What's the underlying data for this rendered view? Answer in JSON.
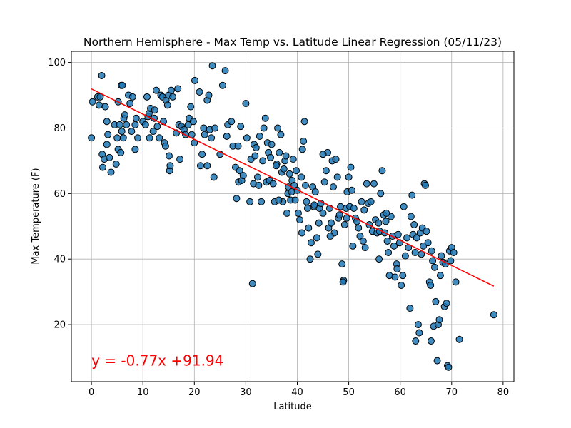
{
  "chart_data": {
    "type": "scatter",
    "title": "Northern Hemisphere - Max Temp vs. Latitude Linear Regression (05/11/23)",
    "xlabel": "Latitude",
    "ylabel": "Max Temperature (F)",
    "xlim": [
      -3.9,
      82.1
    ],
    "ylim": [
      2.6,
      103.4
    ],
    "xticks": [
      0,
      10,
      20,
      30,
      40,
      50,
      60,
      70,
      80
    ],
    "yticks": [
      20,
      40,
      60,
      80,
      100
    ],
    "grid": true,
    "marker_color": "#1f77b4",
    "line_color": "#ff0000",
    "regression": {
      "slope": -0.77,
      "intercept": 91.94,
      "x_start": 0,
      "x_end": 78.2
    },
    "annotation": {
      "text": "y = -0.77x +91.94",
      "x": 0,
      "y": 7.5,
      "color": "#ff0000"
    },
    "points": [
      [
        0.0,
        77.0
      ],
      [
        0.2,
        88.0
      ],
      [
        1.2,
        89.5
      ],
      [
        1.5,
        87.0
      ],
      [
        1.7,
        89.5
      ],
      [
        2.0,
        96.0
      ],
      [
        2.1,
        72.0
      ],
      [
        2.2,
        68.0
      ],
      [
        2.5,
        70.5
      ],
      [
        2.7,
        86.5
      ],
      [
        3.0,
        82.0
      ],
      [
        3.0,
        75.0
      ],
      [
        3.2,
        78.0
      ],
      [
        3.5,
        71.0
      ],
      [
        3.8,
        66.5
      ],
      [
        4.5,
        81.0
      ],
      [
        4.8,
        69.0
      ],
      [
        5.0,
        77.0
      ],
      [
        5.2,
        73.5
      ],
      [
        5.2,
        88.0
      ],
      [
        5.5,
        81.0
      ],
      [
        5.7,
        72.5
      ],
      [
        5.8,
        93.0
      ],
      [
        5.9,
        79.0
      ],
      [
        6.0,
        93.0
      ],
      [
        6.2,
        77.0
      ],
      [
        6.3,
        83.0
      ],
      [
        6.5,
        84.0
      ],
      [
        6.8,
        81.0
      ],
      [
        7.2,
        90.0
      ],
      [
        7.5,
        87.5
      ],
      [
        7.8,
        79.0
      ],
      [
        8.0,
        89.5
      ],
      [
        8.5,
        81.0
      ],
      [
        8.5,
        73.5
      ],
      [
        8.7,
        83.0
      ],
      [
        9.0,
        77.0
      ],
      [
        10.0,
        82.0
      ],
      [
        10.5,
        81.0
      ],
      [
        10.8,
        89.5
      ],
      [
        11.0,
        83.5
      ],
      [
        11.2,
        84.5
      ],
      [
        11.3,
        77.0
      ],
      [
        11.5,
        86.0
      ],
      [
        12.0,
        79.0
      ],
      [
        12.2,
        83.0
      ],
      [
        12.3,
        85.5
      ],
      [
        12.6,
        91.5
      ],
      [
        12.8,
        80.5
      ],
      [
        13.2,
        77.0
      ],
      [
        13.5,
        90.0
      ],
      [
        13.8,
        89.5
      ],
      [
        14.0,
        82.0
      ],
      [
        14.2,
        75.5
      ],
      [
        14.4,
        74.5
      ],
      [
        14.5,
        88.5
      ],
      [
        14.8,
        87.0
      ],
      [
        15.0,
        90.0
      ],
      [
        15.1,
        71.5
      ],
      [
        15.2,
        67.0
      ],
      [
        15.3,
        68.5
      ],
      [
        15.5,
        91.5
      ],
      [
        15.8,
        89.5
      ],
      [
        16.5,
        78.5
      ],
      [
        16.8,
        92.0
      ],
      [
        17.0,
        81.0
      ],
      [
        17.2,
        70.5
      ],
      [
        17.5,
        80.5
      ],
      [
        18.0,
        79.5
      ],
      [
        18.3,
        78.0
      ],
      [
        18.8,
        81.0
      ],
      [
        19.0,
        83.0
      ],
      [
        19.3,
        86.5
      ],
      [
        19.5,
        78.0
      ],
      [
        19.8,
        82.0
      ],
      [
        20.0,
        75.5
      ],
      [
        20.1,
        94.5
      ],
      [
        21.0,
        91.0
      ],
      [
        21.2,
        68.5
      ],
      [
        21.5,
        72.0
      ],
      [
        21.8,
        80.0
      ],
      [
        22.0,
        78.0
      ],
      [
        22.5,
        88.5
      ],
      [
        22.5,
        68.5
      ],
      [
        22.8,
        90.0
      ],
      [
        23.0,
        79.5
      ],
      [
        23.3,
        77.0
      ],
      [
        23.5,
        99.0
      ],
      [
        23.8,
        65.0
      ],
      [
        24.0,
        80.0
      ],
      [
        25.0,
        72.0
      ],
      [
        25.5,
        93.0
      ],
      [
        26.0,
        97.5
      ],
      [
        26.3,
        77.5
      ],
      [
        26.5,
        81.0
      ],
      [
        27.2,
        82.0
      ],
      [
        27.5,
        74.5
      ],
      [
        28.0,
        68.0
      ],
      [
        28.2,
        58.5
      ],
      [
        28.5,
        74.5
      ],
      [
        28.6,
        63.5
      ],
      [
        28.8,
        67.0
      ],
      [
        29.0,
        80.5
      ],
      [
        29.2,
        64.0
      ],
      [
        29.5,
        65.5
      ],
      [
        30.0,
        87.5
      ],
      [
        30.2,
        77.0
      ],
      [
        30.8,
        57.5
      ],
      [
        31.0,
        70.5
      ],
      [
        31.3,
        32.5
      ],
      [
        31.5,
        63.0
      ],
      [
        31.6,
        75.0
      ],
      [
        31.8,
        71.5
      ],
      [
        32.0,
        74.0
      ],
      [
        32.3,
        65.0
      ],
      [
        32.5,
        62.5
      ],
      [
        32.7,
        77.5
      ],
      [
        33.0,
        57.5
      ],
      [
        33.3,
        70.0
      ],
      [
        33.5,
        80.0
      ],
      [
        33.8,
        83.0
      ],
      [
        34.0,
        63.5
      ],
      [
        34.2,
        75.5
      ],
      [
        34.4,
        72.5
      ],
      [
        34.6,
        64.0
      ],
      [
        34.8,
        71.0
      ],
      [
        35.0,
        75.0
      ],
      [
        35.3,
        63.0
      ],
      [
        35.6,
        57.5
      ],
      [
        36.0,
        69.0
      ],
      [
        36.2,
        80.0
      ],
      [
        36.5,
        72.5
      ],
      [
        36.8,
        78.0
      ],
      [
        37.0,
        66.5
      ],
      [
        37.2,
        57.5
      ],
      [
        37.4,
        67.5
      ],
      [
        37.6,
        70.0
      ],
      [
        37.8,
        71.5
      ],
      [
        38.0,
        54.0
      ],
      [
        38.2,
        60.0
      ],
      [
        38.3,
        62.0
      ],
      [
        38.5,
        66.0
      ],
      [
        38.7,
        58.0
      ],
      [
        38.9,
        60.5
      ],
      [
        39.0,
        64.0
      ],
      [
        39.2,
        70.5
      ],
      [
        39.4,
        62.5
      ],
      [
        39.6,
        58.0
      ],
      [
        39.8,
        67.0
      ],
      [
        40.0,
        61.0
      ],
      [
        40.2,
        54.0
      ],
      [
        40.5,
        52.0
      ],
      [
        40.8,
        65.0
      ],
      [
        41.0,
        73.5
      ],
      [
        41.2,
        76.0
      ],
      [
        41.4,
        82.0
      ],
      [
        41.6,
        62.5
      ],
      [
        41.8,
        57.5
      ],
      [
        42.0,
        55.5
      ],
      [
        42.2,
        49.5
      ],
      [
        42.5,
        40.0
      ],
      [
        42.7,
        45.0
      ],
      [
        43.0,
        62.0
      ],
      [
        43.2,
        56.0
      ],
      [
        43.5,
        60.5
      ],
      [
        43.8,
        46.5
      ],
      [
        44.0,
        41.5
      ],
      [
        44.3,
        55.5
      ],
      [
        44.6,
        57.0
      ],
      [
        45.0,
        54.0
      ],
      [
        45.3,
        63.5
      ],
      [
        45.6,
        67.0
      ],
      [
        45.9,
        72.5
      ],
      [
        46.1,
        49.5
      ],
      [
        46.3,
        55.5
      ],
      [
        46.6,
        51.0
      ],
      [
        46.8,
        70.0
      ],
      [
        47.0,
        62.0
      ],
      [
        47.2,
        48.0
      ],
      [
        47.5,
        70.5
      ],
      [
        47.8,
        65.0
      ],
      [
        48.0,
        52.5
      ],
      [
        48.2,
        53.5
      ],
      [
        48.4,
        56.0
      ],
      [
        48.7,
        38.5
      ],
      [
        49.0,
        33.5
      ],
      [
        49.2,
        50.5
      ],
      [
        49.5,
        55.5
      ],
      [
        49.7,
        60.5
      ],
      [
        50.0,
        65.0
      ],
      [
        50.2,
        56.0
      ],
      [
        50.4,
        68.0
      ],
      [
        50.6,
        61.0
      ],
      [
        50.8,
        44.0
      ],
      [
        51.0,
        55.5
      ],
      [
        51.3,
        52.5
      ],
      [
        51.6,
        51.5
      ],
      [
        51.9,
        49.5
      ],
      [
        52.2,
        47.0
      ],
      [
        52.5,
        57.5
      ],
      [
        52.8,
        45.5
      ],
      [
        53.0,
        55.0
      ],
      [
        53.2,
        43.5
      ],
      [
        53.5,
        63.0
      ],
      [
        53.8,
        57.0
      ],
      [
        54.0,
        50.5
      ],
      [
        54.3,
        57.5
      ],
      [
        54.6,
        48.5
      ],
      [
        54.9,
        63.0
      ],
      [
        55.2,
        52.0
      ],
      [
        55.5,
        48.0
      ],
      [
        55.8,
        51.0
      ],
      [
        56.0,
        48.5
      ],
      [
        56.2,
        60.0
      ],
      [
        56.5,
        67.0
      ],
      [
        56.8,
        53.5
      ],
      [
        57.0,
        48.0
      ],
      [
        57.2,
        51.5
      ],
      [
        57.5,
        45.5
      ],
      [
        57.7,
        42.0
      ],
      [
        57.9,
        35.0
      ],
      [
        58.2,
        53.0
      ],
      [
        58.5,
        47.0
      ],
      [
        58.8,
        44.0
      ],
      [
        59.0,
        34.5
      ],
      [
        59.3,
        38.5
      ],
      [
        59.6,
        47.5
      ],
      [
        59.9,
        45.0
      ],
      [
        60.2,
        32.0
      ],
      [
        60.5,
        35.0
      ],
      [
        60.7,
        56.0
      ],
      [
        61.0,
        41.0
      ],
      [
        61.3,
        46.5
      ],
      [
        61.6,
        43.5
      ],
      [
        61.9,
        25.0
      ],
      [
        62.1,
        53.0
      ],
      [
        62.3,
        59.5
      ],
      [
        62.5,
        47.5
      ],
      [
        62.7,
        50.5
      ],
      [
        62.9,
        42.0
      ],
      [
        63.2,
        46.5
      ],
      [
        63.5,
        20.0
      ],
      [
        63.7,
        17.5
      ],
      [
        63.9,
        48.0
      ],
      [
        64.1,
        41.5
      ],
      [
        64.3,
        49.5
      ],
      [
        64.5,
        44.0
      ],
      [
        64.7,
        63.0
      ],
      [
        64.9,
        62.5
      ],
      [
        65.1,
        48.5
      ],
      [
        65.4,
        45.0
      ],
      [
        65.7,
        33.0
      ],
      [
        65.9,
        32.0
      ],
      [
        66.1,
        42.5
      ],
      [
        66.3,
        39.5
      ],
      [
        66.5,
        19.5
      ],
      [
        66.7,
        37.5
      ],
      [
        66.9,
        27.0
      ],
      [
        67.2,
        9.0
      ],
      [
        67.4,
        20.0
      ],
      [
        67.6,
        21.5
      ],
      [
        67.8,
        35.0
      ],
      [
        68.0,
        41.0
      ],
      [
        68.3,
        39.0
      ],
      [
        68.6,
        25.5
      ],
      [
        68.8,
        38.5
      ],
      [
        69.0,
        26.5
      ],
      [
        69.2,
        7.5
      ],
      [
        69.4,
        7.0
      ],
      [
        69.6,
        42.5
      ],
      [
        69.8,
        39.5
      ],
      [
        70.0,
        43.5
      ],
      [
        70.4,
        42.0
      ],
      [
        70.8,
        33.0
      ],
      [
        71.5,
        15.5
      ],
      [
        78.2,
        23.0
      ],
      [
        45.0,
        72.0
      ],
      [
        44.2,
        51.0
      ],
      [
        46.4,
        47.0
      ],
      [
        49.6,
        52.5
      ],
      [
        59.4,
        37.0
      ],
      [
        55.9,
        40.0
      ],
      [
        48.9,
        33.0
      ],
      [
        63.0,
        15.0
      ],
      [
        66.0,
        15.0
      ],
      [
        57.3,
        54.0
      ],
      [
        43.3,
        56.5
      ],
      [
        40.9,
        48.0
      ],
      [
        36.4,
        58.0
      ],
      [
        35.9,
        68.5
      ]
    ]
  }
}
